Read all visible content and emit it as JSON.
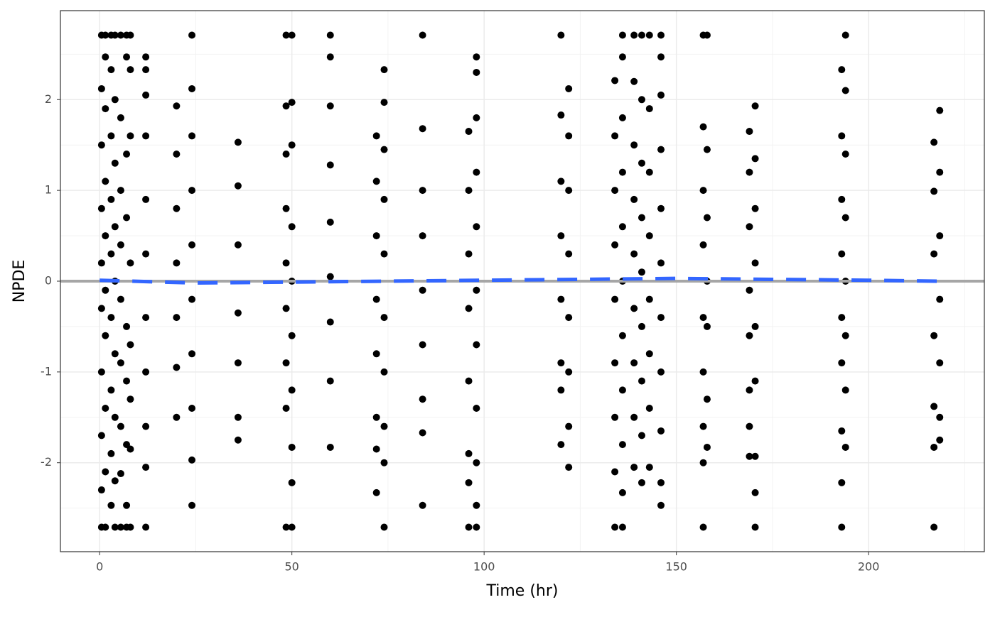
{
  "chart_data": {
    "type": "scatter",
    "x_label": "Time (hr)",
    "y_label": "NPDE",
    "xlim": [
      -10.2,
      230.1
    ],
    "ylim": [
      -2.98,
      2.98
    ],
    "xticks": [
      0,
      50,
      100,
      150,
      200
    ],
    "yticks": [
      -2,
      -1,
      0,
      1,
      2
    ],
    "minor_xticks": [
      25,
      75,
      125,
      175,
      225
    ],
    "minor_yticks": [
      -2.5,
      -1.5,
      -0.5,
      0.5,
      1.5,
      2.5
    ],
    "grid": true,
    "color": "#000000",
    "x": [
      0.5,
      0.5,
      0.5,
      0.5,
      0.5,
      0.5,
      0.5,
      0.5,
      0.5,
      0.5,
      1.5,
      1.5,
      1.5,
      1.5,
      1.5,
      1.5,
      1.5,
      1.5,
      1.5,
      1.5,
      3,
      3,
      3,
      3,
      3,
      3,
      3,
      3,
      3,
      4,
      4,
      4,
      4,
      4,
      4,
      4,
      4,
      4,
      5.5,
      5.5,
      5.5,
      5.5,
      5.5,
      5.5,
      5.5,
      5.5,
      5.5,
      7,
      7,
      7,
      7,
      7,
      7,
      7,
      7,
      7,
      8,
      8,
      8,
      8,
      8,
      8,
      8,
      8,
      12,
      12,
      12,
      12,
      12,
      12,
      12,
      12,
      12,
      12,
      12,
      20,
      20,
      20,
      20,
      20,
      20,
      20,
      24,
      24,
      24,
      24,
      24,
      24,
      24,
      24,
      24,
      24,
      36,
      36,
      36,
      36,
      36,
      36,
      36,
      48.5,
      48.5,
      48.5,
      48.5,
      48.5,
      48.5,
      48.5,
      48.5,
      48.5,
      50,
      50,
      50,
      50,
      50,
      50,
      50,
      50,
      50,
      50,
      60,
      60,
      60,
      60,
      60,
      60,
      60,
      60,
      60,
      72,
      72,
      72,
      72,
      72,
      72,
      72,
      72,
      74,
      74,
      74,
      74,
      74,
      74,
      74,
      74,
      74,
      74,
      84,
      84,
      84,
      84,
      84,
      84,
      84,
      84,
      84,
      96,
      96,
      96,
      96,
      96,
      96,
      96,
      96,
      98,
      98,
      98,
      98,
      98,
      98,
      98,
      98,
      98,
      98,
      98,
      120,
      120,
      120,
      120,
      120,
      120,
      120,
      120,
      122,
      122,
      122,
      122,
      122,
      122,
      122,
      122,
      134,
      134,
      134,
      134,
      134,
      134,
      134,
      134,
      134,
      136,
      136,
      136,
      136,
      136,
      136,
      136,
      136,
      136,
      136,
      136,
      139,
      139,
      139,
      139,
      139,
      139,
      139,
      139,
      139,
      141,
      141,
      141,
      141,
      141,
      141,
      141,
      141,
      141,
      143,
      143,
      143,
      143,
      143,
      143,
      143,
      143,
      146,
      146,
      146,
      146,
      146,
      146,
      146,
      146,
      146,
      146,
      146,
      157,
      157,
      157,
      157,
      157,
      157,
      157,
      157,
      157,
      158,
      158,
      158,
      158,
      158,
      158,
      158,
      169,
      169,
      169,
      169,
      169,
      169,
      169,
      169,
      170.5,
      170.5,
      170.5,
      170.5,
      170.5,
      170.5,
      170.5,
      170.5,
      170.5,
      193,
      193,
      193,
      193,
      193,
      193,
      193,
      193,
      193,
      194,
      194,
      194,
      194,
      194,
      194,
      194,
      194,
      217,
      217,
      217,
      217,
      217,
      217,
      217,
      218.5,
      218.5,
      218.5,
      218.5,
      218.5,
      218.5,
      218.5
    ],
    "values": [
      2.71,
      -2.71,
      2.12,
      1.5,
      0.8,
      0.2,
      -0.3,
      -1.0,
      -1.7,
      -2.3,
      2.71,
      2.47,
      1.9,
      1.1,
      0.5,
      -0.1,
      -0.6,
      -1.4,
      -2.1,
      -2.71,
      2.71,
      2.33,
      1.6,
      0.9,
      0.3,
      -0.4,
      -1.2,
      -1.9,
      -2.47,
      2.71,
      2.0,
      1.3,
      0.6,
      0.0,
      -0.8,
      -1.5,
      -2.2,
      -2.71,
      2.71,
      1.8,
      1.0,
      0.4,
      -0.2,
      -0.9,
      -1.6,
      -2.12,
      -2.71,
      2.71,
      2.47,
      1.4,
      0.7,
      -0.5,
      -1.1,
      -1.8,
      -2.47,
      -2.71,
      2.71,
      2.33,
      1.6,
      0.2,
      -0.7,
      -1.3,
      -1.85,
      -2.71,
      2.47,
      2.33,
      2.05,
      1.6,
      0.9,
      0.3,
      -0.4,
      -1.0,
      -1.6,
      -2.05,
      -2.71,
      1.93,
      1.4,
      0.8,
      0.2,
      -0.4,
      -0.95,
      -1.5,
      2.71,
      2.12,
      1.6,
      1.0,
      0.4,
      -0.2,
      -0.8,
      -1.4,
      -1.97,
      -2.47,
      1.53,
      1.05,
      0.4,
      -0.35,
      -0.9,
      -1.5,
      -1.75,
      2.71,
      1.93,
      1.4,
      0.8,
      0.2,
      -0.3,
      -0.9,
      -1.4,
      -2.71,
      2.71,
      1.97,
      1.5,
      0.6,
      0.0,
      -0.6,
      -1.2,
      -1.83,
      -2.22,
      -2.71,
      2.71,
      2.47,
      1.93,
      1.28,
      0.65,
      0.05,
      -0.45,
      -1.1,
      -1.83,
      1.6,
      1.1,
      0.5,
      -0.2,
      -0.8,
      -1.5,
      -1.85,
      -2.33,
      2.33,
      1.97,
      1.45,
      0.9,
      0.3,
      -0.4,
      -1.0,
      -1.6,
      -2.0,
      -2.71,
      2.71,
      1.68,
      1.0,
      0.5,
      -0.1,
      -0.7,
      -1.3,
      -1.67,
      -2.47,
      1.65,
      1.0,
      0.3,
      -0.3,
      -1.1,
      -1.9,
      -2.22,
      -2.71,
      2.47,
      2.3,
      1.8,
      1.2,
      0.6,
      -0.1,
      -0.7,
      -1.4,
      -2.0,
      -2.47,
      -2.71,
      2.71,
      1.83,
      1.1,
      0.5,
      -0.2,
      -0.9,
      -1.2,
      -1.8,
      2.12,
      1.6,
      1.0,
      0.3,
      -0.4,
      -1.0,
      -1.6,
      -2.05,
      2.21,
      1.6,
      1.0,
      0.4,
      -0.2,
      -0.9,
      -1.5,
      -2.1,
      -2.71,
      2.71,
      2.47,
      1.8,
      1.2,
      0.6,
      0.0,
      -0.6,
      -1.2,
      -1.8,
      -2.33,
      -2.71,
      2.71,
      2.2,
      1.5,
      0.9,
      0.3,
      -0.3,
      -0.9,
      -1.5,
      -2.05,
      2.71,
      2.0,
      1.3,
      0.7,
      0.1,
      -0.5,
      -1.1,
      -1.7,
      -2.22,
      2.71,
      1.9,
      1.2,
      0.5,
      -0.2,
      -0.8,
      -1.4,
      -2.05,
      2.71,
      2.47,
      2.05,
      1.45,
      0.8,
      0.2,
      -0.4,
      -1.0,
      -1.65,
      -2.22,
      -2.47,
      2.71,
      1.7,
      1.0,
      0.4,
      -0.4,
      -1.0,
      -1.6,
      -2.0,
      -2.71,
      2.71,
      1.45,
      0.7,
      0.0,
      -0.5,
      -1.3,
      -1.83,
      1.65,
      1.2,
      0.6,
      -0.1,
      -0.6,
      -1.2,
      -1.6,
      -1.93,
      1.93,
      1.35,
      0.8,
      0.2,
      -0.5,
      -1.1,
      -1.93,
      -2.33,
      -2.71,
      2.33,
      1.6,
      0.9,
      0.3,
      -0.4,
      -0.9,
      -1.65,
      -2.22,
      -2.71,
      2.71,
      2.1,
      1.4,
      0.7,
      0.0,
      -0.6,
      -1.2,
      -1.83,
      1.53,
      0.99,
      0.3,
      -0.6,
      -1.38,
      -1.83,
      -2.71,
      1.88,
      1.2,
      0.5,
      -0.2,
      -0.9,
      -1.5,
      -1.75
    ],
    "reference_line": {
      "value": 0,
      "color": "#a6a6a6"
    },
    "trend": {
      "color": "#3366ff",
      "x": [
        0,
        25,
        50,
        75,
        100,
        125,
        150,
        175,
        200,
        218
      ],
      "values": [
        0.01,
        -0.02,
        -0.01,
        0.0,
        0.01,
        0.02,
        0.03,
        0.02,
        0.01,
        0.0
      ]
    }
  }
}
